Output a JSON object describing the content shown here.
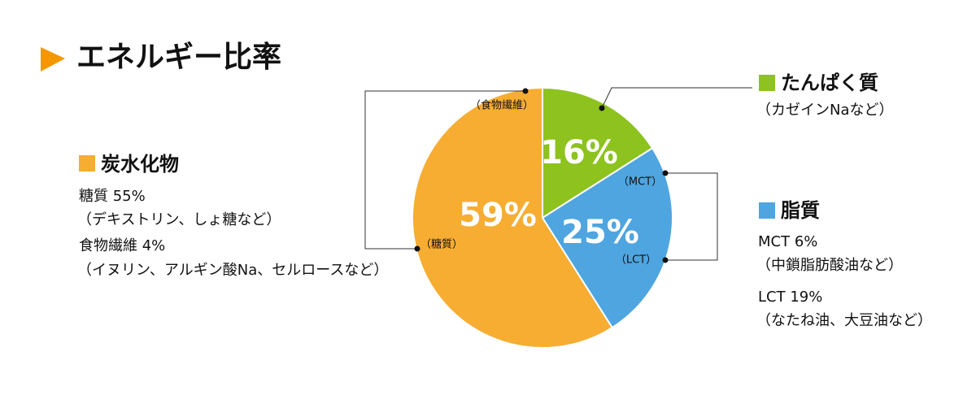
{
  "chart_data": {
    "type": "pie",
    "title": "エネルギー比率",
    "categories": [
      "たんぱく質",
      "脂質",
      "炭水化物"
    ],
    "values": [
      16,
      25,
      59
    ],
    "value_labels": [
      "16%",
      "25%",
      "59%"
    ],
    "colors": [
      "#8dc21f",
      "#4ea5e0",
      "#f6ad32"
    ],
    "details": [
      [
        "（カゼインNaなど）"
      ],
      [
        "MCT 6%",
        "（中鎖脂肪酸油など）",
        "LCT 19%",
        "（なたね油、大豆油など）"
      ],
      [
        "糖質 55%",
        "（デキストリン、しょ糖など）",
        "食物繊維 4%",
        "（イヌリン、アルギン酸Na、セルロースなど）"
      ]
    ],
    "annotations": [
      "（食物繊維）",
      "（糖質）",
      "（MCT）",
      "（LCT）"
    ]
  }
}
